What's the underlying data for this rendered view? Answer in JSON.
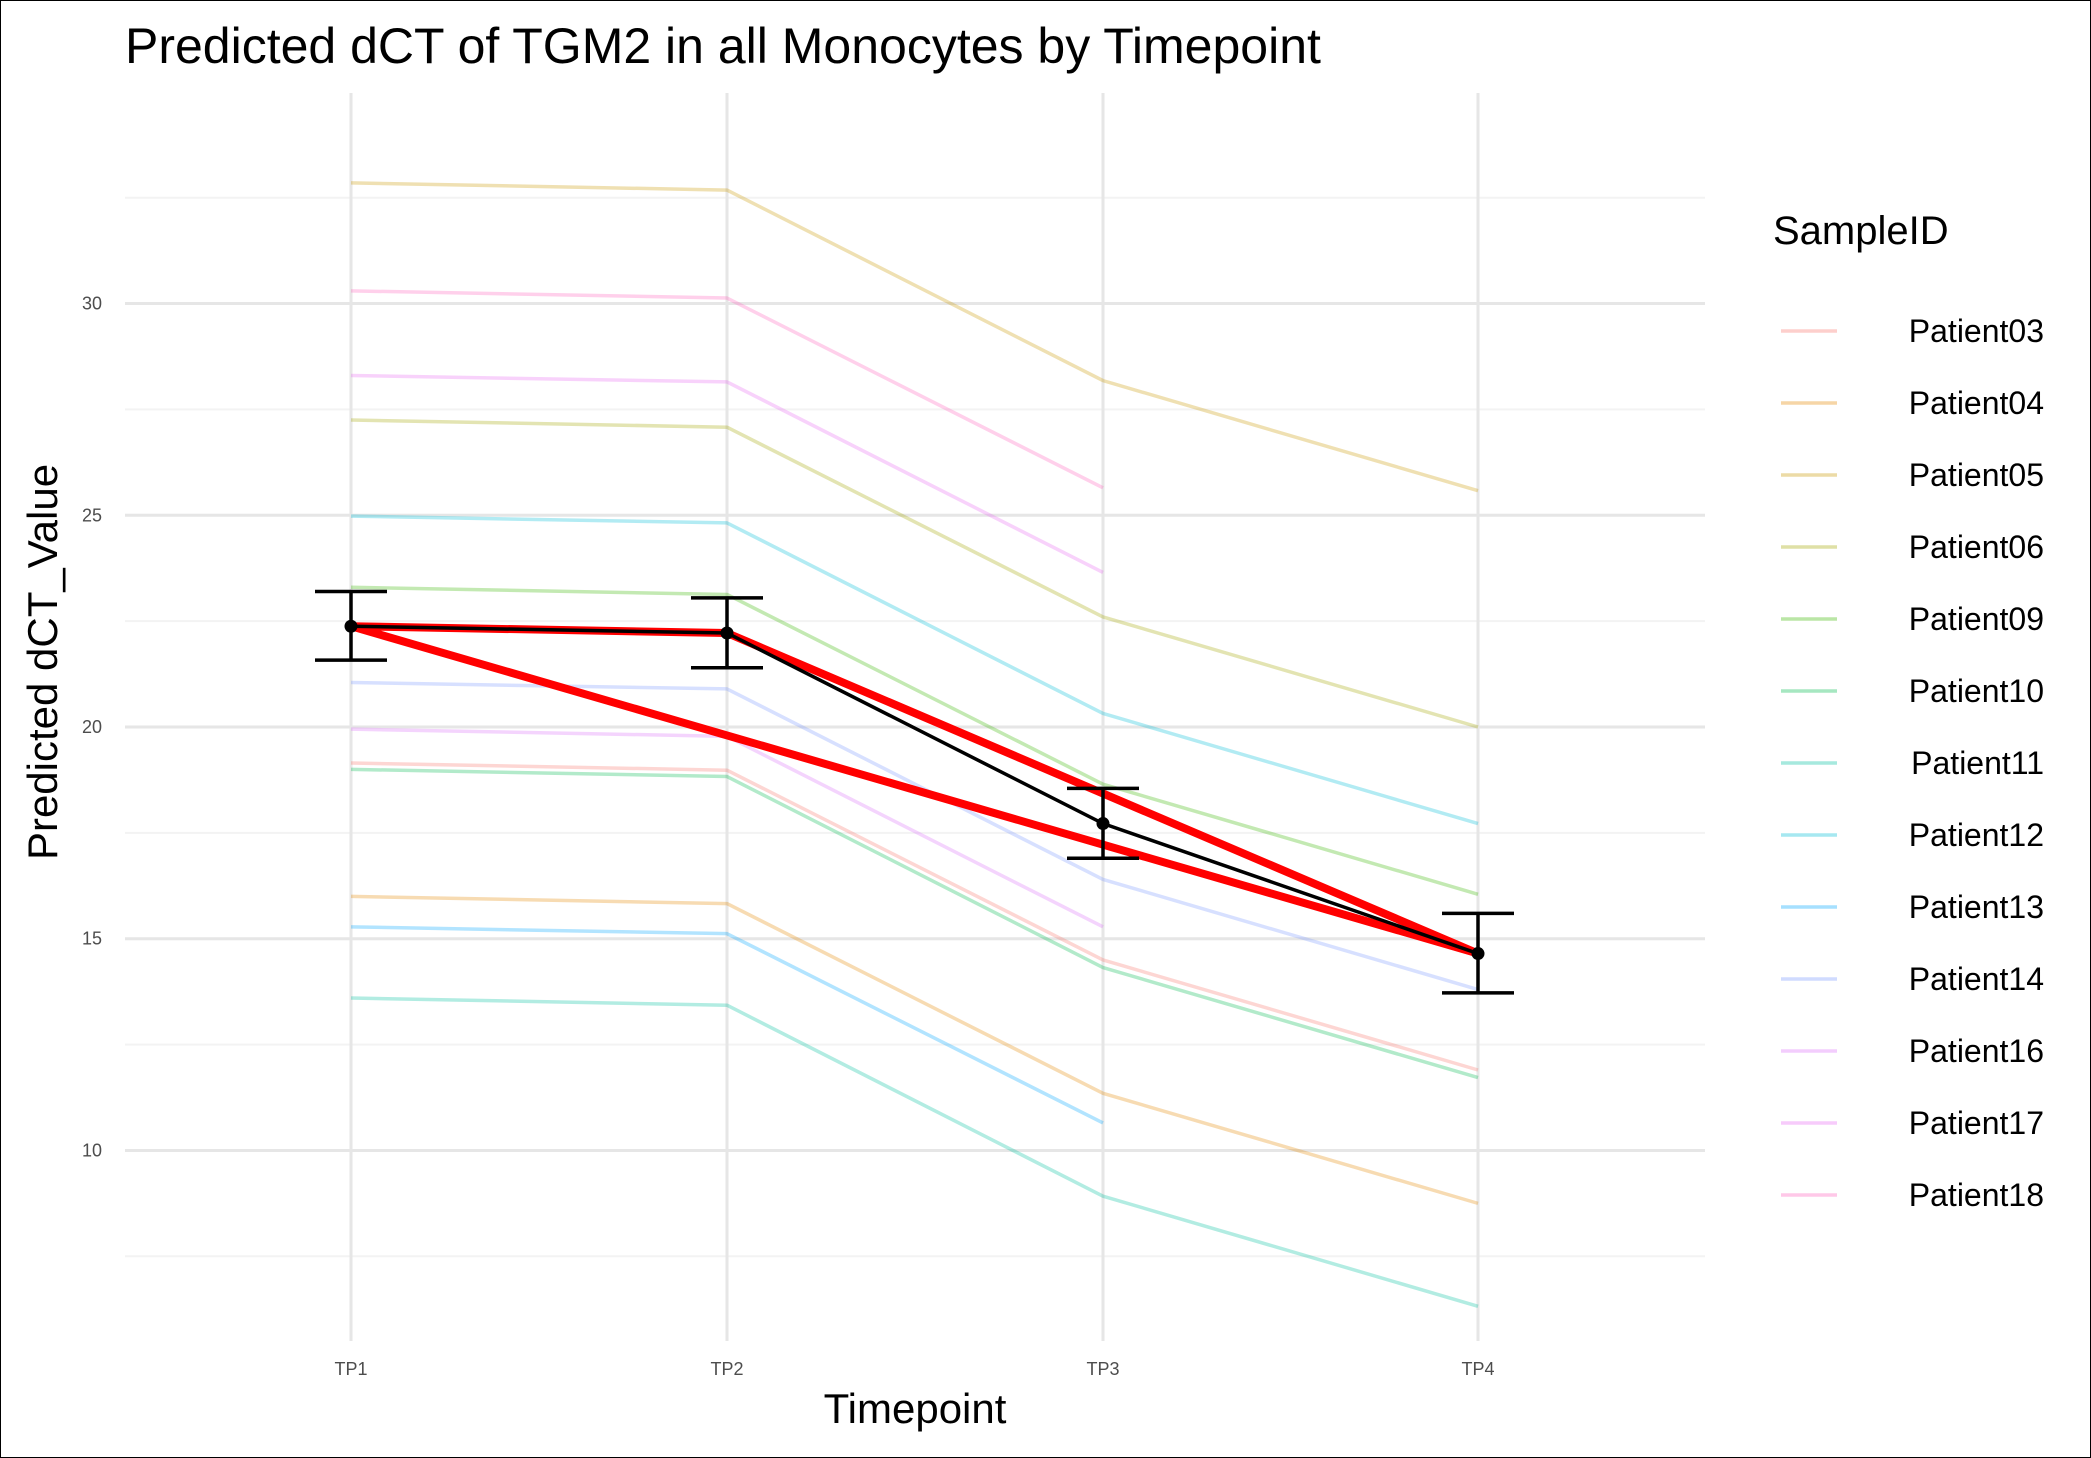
{
  "chart_data": {
    "type": "line",
    "title": "Predicted dCT of  TGM2 in  all  Monocytes by Timepoint",
    "xlabel": "Timepoint",
    "ylabel": "Predicted dCT_Value",
    "categories": [
      "TP1",
      "TP2",
      "TP3",
      "TP4"
    ],
    "ylim": [
      5.5,
      34.5
    ],
    "yticks": [
      10,
      15,
      20,
      25,
      30
    ],
    "grid": true,
    "legend": {
      "title": "SampleID",
      "position": "right"
    },
    "series": [
      {
        "name": "Patient03",
        "color": "#F8766D",
        "values": [
          19.15,
          18.98,
          14.5,
          11.9
        ]
      },
      {
        "name": "Patient04",
        "color": "#E58700",
        "values": [
          16.0,
          15.83,
          11.35,
          8.75
        ]
      },
      {
        "name": "Patient05",
        "color": "#C99800",
        "values": [
          32.85,
          32.68,
          28.18,
          25.58
        ]
      },
      {
        "name": "Patient06",
        "color": "#A3A500",
        "values": [
          27.25,
          27.08,
          22.6,
          20.0
        ]
      },
      {
        "name": "Patient09",
        "color": "#39B600",
        "values": [
          23.3,
          23.13,
          18.65,
          16.05
        ]
      },
      {
        "name": "Patient10",
        "color": "#00BB4E",
        "values": [
          19.0,
          18.83,
          14.32,
          11.72
        ]
      },
      {
        "name": "Patient11",
        "color": "#00BFA0",
        "values": [
          13.6,
          13.43,
          8.92,
          6.32
        ]
      },
      {
        "name": "Patient12",
        "color": "#00BCD8",
        "values": [
          24.98,
          24.82,
          20.32,
          17.72
        ]
      },
      {
        "name": "Patient13",
        "color": "#00A5FF",
        "values": [
          15.28,
          15.12,
          10.65,
          null
        ]
      },
      {
        "name": "Patient14",
        "color": "#7997FF",
        "values": [
          21.05,
          20.9,
          16.4,
          13.8
        ]
      },
      {
        "name": "Patient16",
        "color": "#DC71FA",
        "values": [
          19.95,
          19.78,
          15.28,
          null
        ]
      },
      {
        "name": "Patient17",
        "color": "#E76BF3",
        "values": [
          28.3,
          28.15,
          23.65,
          null
        ]
      },
      {
        "name": "Patient18",
        "color": "#FF62BC",
        "values": [
          30.3,
          30.13,
          25.65,
          null
        ]
      }
    ],
    "mean": {
      "color": "#000000",
      "values": [
        22.38,
        22.22,
        17.72,
        14.65
      ],
      "error_low": [
        21.58,
        21.4,
        16.9,
        13.72
      ],
      "error_high": [
        23.2,
        23.05,
        18.55,
        15.6
      ]
    },
    "highlight": {
      "color": "#FF0000",
      "path": [
        {
          "x": "TP1",
          "y": 22.38
        },
        {
          "x": "TP2",
          "y": 22.22
        },
        {
          "x": "TP4",
          "y": 14.65
        },
        {
          "x": "TP1",
          "y": 22.38
        }
      ]
    }
  }
}
